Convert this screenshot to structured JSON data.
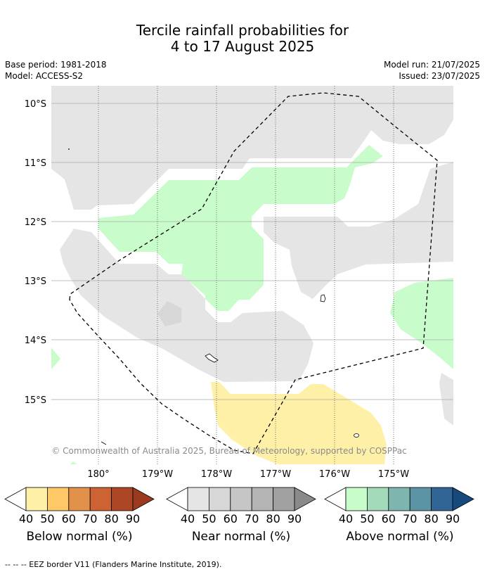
{
  "title_line1": "Tercile rainfall probabilities for",
  "title_line2": "4 to 17 August 2025",
  "base_period": "Base period: 1981-2018",
  "model": "Model: ACCESS-S2",
  "model_run": "Model run: 21/07/2025",
  "issued": "Issued: 23/07/2025",
  "lat_labels": [
    "10°S",
    "11°S",
    "12°S",
    "13°S",
    "14°S",
    "15°S"
  ],
  "lon_labels": [
    "180°",
    "179°W",
    "178°W",
    "177°W",
    "176°W",
    "175°W"
  ],
  "copyright": "© Commonwealth of Australia 2025, Bureau of Meteorology, supported by COSPPac",
  "colorbars": [
    {
      "title": "Below normal (%)",
      "ticks": [
        "40",
        "50",
        "60",
        "70",
        "80",
        "90"
      ],
      "colors": [
        "#fff0a8",
        "#fdc865",
        "#e1914a",
        "#cd6233",
        "#ad4624",
        "#9c3a20"
      ]
    },
    {
      "title": "Near normal (%)",
      "ticks": [
        "40",
        "50",
        "60",
        "70",
        "80",
        "90"
      ],
      "colors": [
        "#e5e5e5",
        "#d7d7d7",
        "#c6c6c6",
        "#b4b4b4",
        "#a1a1a1",
        "#8a8a8a"
      ]
    },
    {
      "title": "Above normal (%)",
      "ticks": [
        "40",
        "50",
        "60",
        "70",
        "80",
        "90"
      ],
      "colors": [
        "#c8fdcb",
        "#a3dab9",
        "#7eb6af",
        "#5b95a5",
        "#306596",
        "#174a7c"
      ]
    }
  ],
  "footnote": "--  --  -- EEZ border V11 (Flanders Marine Institute, 2019)."
}
